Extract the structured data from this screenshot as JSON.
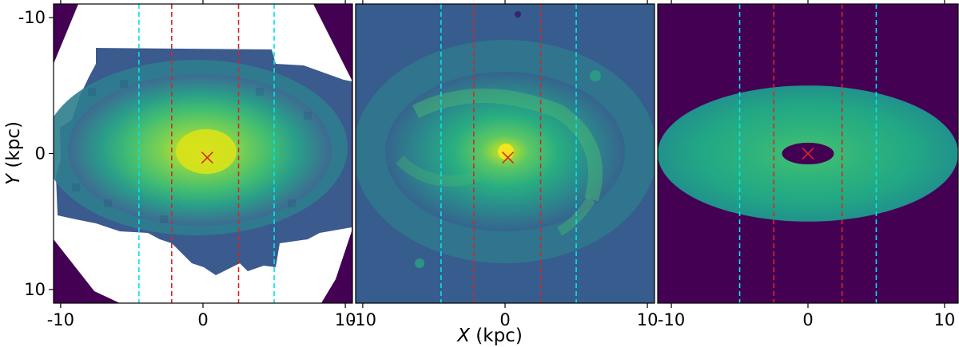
{
  "figure": {
    "xlabel_var": "X",
    "xlabel_unit": " (kpc)",
    "ylabel_var": "Y",
    "ylabel_unit": " (kpc)"
  },
  "chart_data": [
    {
      "type": "heatmap",
      "panel": "left",
      "description_colormap": "viridis",
      "xlim": [
        -10.5,
        10.5
      ],
      "ylim": [
        -11,
        11
      ],
      "y_inverted": true,
      "xticks": [
        -10,
        0,
        10
      ],
      "xtick_labels": [
        "-10",
        "0",
        "10"
      ],
      "yticks": [
        -10,
        0,
        10
      ],
      "ytick_labels": [
        "-10",
        "0",
        "10"
      ],
      "vlines": [
        {
          "x": -4.5,
          "color": "#00e5ee",
          "style": "dashed"
        },
        {
          "x": -2.2,
          "color": "#d62728",
          "style": "dashed"
        },
        {
          "x": 2.5,
          "color": "#d62728",
          "style": "dashed"
        },
        {
          "x": 5.0,
          "color": "#00e5ee",
          "style": "dashed"
        }
      ],
      "center_marker": {
        "x": 0.3,
        "y": 0.3,
        "marker": "x",
        "color": "#d62728"
      }
    },
    {
      "type": "heatmap",
      "panel": "middle",
      "description_colormap": "viridis",
      "xlim": [
        -10.5,
        10.5
      ],
      "ylim": [
        -11,
        11
      ],
      "y_inverted": true,
      "xticks": [
        -10,
        0,
        10
      ],
      "xtick_labels": [
        "-10",
        "0",
        "10"
      ],
      "vlines": [
        {
          "x": -4.5,
          "color": "#00e5ee",
          "style": "dashed"
        },
        {
          "x": -2.2,
          "color": "#d62728",
          "style": "dashed"
        },
        {
          "x": 2.5,
          "color": "#d62728",
          "style": "dashed"
        },
        {
          "x": 5.0,
          "color": "#00e5ee",
          "style": "dashed"
        }
      ],
      "center_marker": {
        "x": 0.2,
        "y": 0.3,
        "marker": "x",
        "color": "#d62728"
      }
    },
    {
      "type": "heatmap",
      "panel": "right",
      "description_colormap": "viridis",
      "xlim": [
        -11,
        11
      ],
      "ylim": [
        -11,
        11
      ],
      "y_inverted": true,
      "xticks": [
        -10,
        0,
        10
      ],
      "xtick_labels": [
        "-10",
        "0",
        "10"
      ],
      "vlines": [
        {
          "x": -5.0,
          "color": "#00e5ee",
          "style": "dashed"
        },
        {
          "x": -2.5,
          "color": "#d62728",
          "style": "dashed"
        },
        {
          "x": 2.5,
          "color": "#d62728",
          "style": "dashed"
        },
        {
          "x": 5.0,
          "color": "#00e5ee",
          "style": "dashed"
        }
      ],
      "model_ellipse": {
        "cx": 0,
        "cy": 0,
        "rx": 11,
        "ry": 5
      },
      "inner_hole": {
        "cx": 0,
        "cy": 0,
        "rx": 1.9,
        "ry": 0.8
      },
      "center_marker": {
        "x": 0.0,
        "y": 0.0,
        "marker": "x",
        "color": "#d62728"
      }
    }
  ],
  "colors": {
    "background_low": "#440154",
    "cyan_line": "#00e5ee",
    "red_line": "#d62728"
  }
}
